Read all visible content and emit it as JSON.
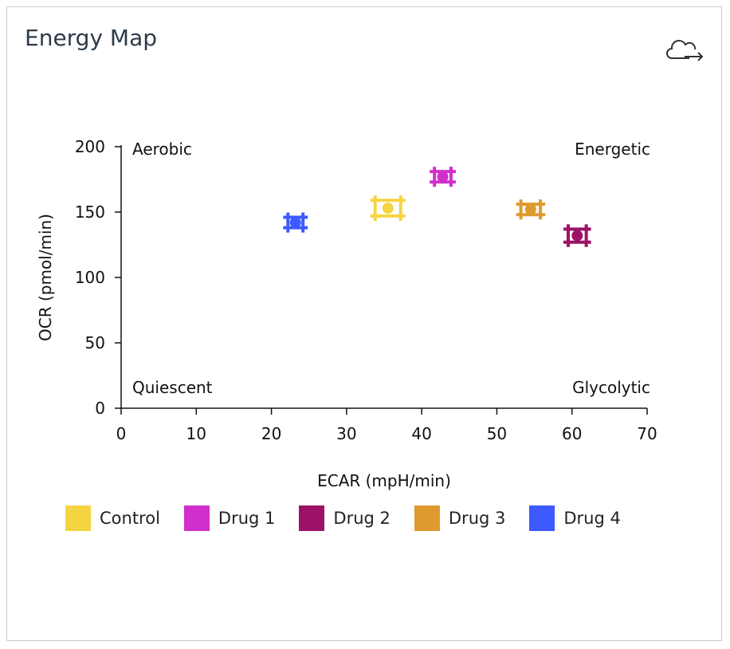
{
  "card": {
    "title": "Energy Map",
    "export_icon": "cloud-export-icon"
  },
  "chart_data": {
    "type": "scatter",
    "title": "Energy Map",
    "xlabel": "ECAR (mpH/min)",
    "ylabel": "OCR (pmol/min)",
    "xlim": [
      0,
      70
    ],
    "ylim": [
      0,
      200
    ],
    "xticks": [
      0,
      10,
      20,
      30,
      40,
      50,
      60,
      70
    ],
    "yticks": [
      0,
      50,
      100,
      150,
      200
    ],
    "grid": false,
    "quadrant_labels": {
      "top_left": "Aerobic",
      "top_right": "Energetic",
      "bottom_left": "Quiescent",
      "bottom_right": "Glycolytic"
    },
    "legend_position": "bottom",
    "series": [
      {
        "name": "Control",
        "color": "#f5d442",
        "x": 35.5,
        "y": 153,
        "x_err": 1.7,
        "y_err": 6
      },
      {
        "name": "Drug 1",
        "color": "#d02fcc",
        "x": 42.8,
        "y": 177,
        "x_err": 1.1,
        "y_err": 4
      },
      {
        "name": "Drug 2",
        "color": "#9b1268",
        "x": 60.7,
        "y": 132,
        "x_err": 1.2,
        "y_err": 5
      },
      {
        "name": "Drug 3",
        "color": "#df9a2f",
        "x": 54.5,
        "y": 152,
        "x_err": 1.3,
        "y_err": 4
      },
      {
        "name": "Drug 4",
        "color": "#3d5afe",
        "x": 23.2,
        "y": 142,
        "x_err": 1.0,
        "y_err": 4
      }
    ]
  }
}
